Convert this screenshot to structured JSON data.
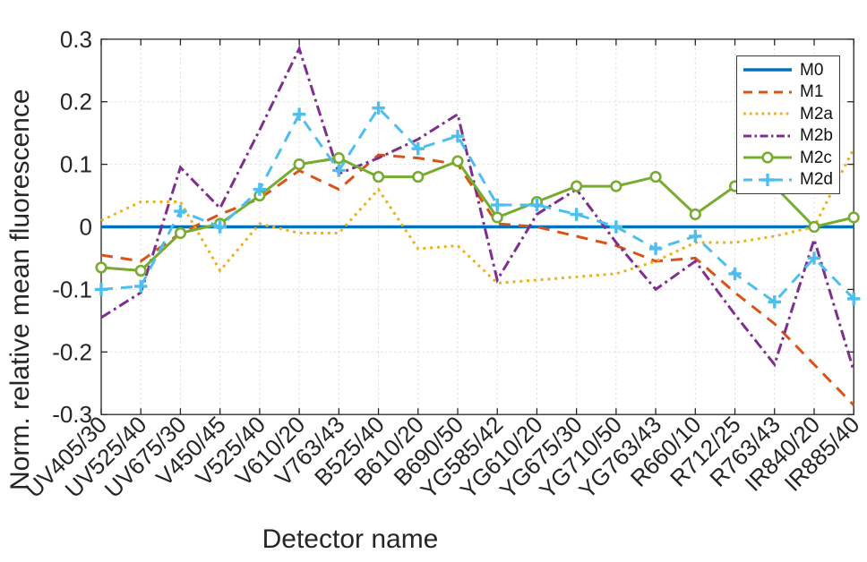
{
  "chart_data": {
    "type": "line",
    "title": "",
    "xlabel": "Detector name",
    "ylabel": "Norm. relative mean fluorescence",
    "ylim": [
      -0.3,
      0.3
    ],
    "ytick_labels": [
      "-0.3",
      "-0.2",
      "-0.1",
      "0",
      "0.1",
      "0.2",
      "0.3"
    ],
    "yticks": [
      -0.3,
      -0.2,
      -0.1,
      0,
      0.1,
      0.2,
      0.3
    ],
    "grid": true,
    "grid_style": "dashed-light-gray",
    "legend_position": "top-right-inside",
    "axis_color": "#262626",
    "categories": [
      "UV405/30",
      "UV525/40",
      "UV675/30",
      "V450/45",
      "V525/40",
      "V610/20",
      "V763/43",
      "B525/40",
      "B610/20",
      "B690/50",
      "YG585/42",
      "YG610/20",
      "YG675/30",
      "YG710/50",
      "YG763/43",
      "R660/10",
      "R712/25",
      "R763/43",
      "IR840/20",
      "IR885/40"
    ],
    "series": [
      {
        "name": "M0",
        "color": "#0072BD",
        "style": "solid",
        "marker": "none",
        "values": [
          0,
          0,
          0,
          0,
          0,
          0,
          0,
          0,
          0,
          0,
          0,
          0,
          0,
          0,
          0,
          0,
          0,
          0,
          0,
          0
        ]
      },
      {
        "name": "M1",
        "color": "#D95319",
        "style": "dashed",
        "marker": "none",
        "values": [
          -0.045,
          -0.055,
          -0.01,
          0.02,
          0.045,
          0.09,
          0.06,
          0.115,
          0.11,
          0.1,
          0.005,
          0,
          -0.015,
          -0.03,
          -0.055,
          -0.05,
          -0.105,
          -0.155,
          -0.22,
          -0.285
        ]
      },
      {
        "name": "M2a",
        "color": "#EDB120",
        "style": "dotted",
        "marker": "none",
        "values": [
          0.01,
          0.04,
          0.04,
          -0.07,
          0.005,
          -0.01,
          -0.01,
          0.06,
          -0.035,
          -0.03,
          -0.09,
          -0.085,
          -0.08,
          -0.075,
          -0.055,
          -0.025,
          -0.025,
          -0.015,
          0,
          0.125
        ]
      },
      {
        "name": "M2b",
        "color": "#7E2F8E",
        "style": "dashdot",
        "marker": "none",
        "values": [
          -0.145,
          -0.105,
          0.095,
          0.03,
          0.155,
          0.285,
          0.085,
          0.11,
          0.14,
          0.18,
          -0.085,
          0.02,
          0.06,
          -0.025,
          -0.1,
          -0.055,
          -0.14,
          -0.22,
          -0.02,
          -0.23
        ]
      },
      {
        "name": "M2c",
        "color": "#77AC30",
        "style": "solid",
        "marker": "circle",
        "values": [
          -0.065,
          -0.07,
          -0.01,
          0.005,
          0.05,
          0.1,
          0.11,
          0.08,
          0.08,
          0.105,
          0.015,
          0.04,
          0.065,
          0.065,
          0.08,
          0.02,
          0.065,
          0.065,
          0,
          0.015
        ]
      },
      {
        "name": "M2d",
        "color": "#4DBEEE",
        "style": "dashed",
        "marker": "plus",
        "values": [
          -0.1,
          -0.095,
          0.025,
          0,
          0.06,
          0.18,
          0.09,
          0.19,
          0.125,
          0.145,
          0.035,
          0.035,
          0.02,
          0,
          -0.035,
          -0.015,
          -0.075,
          -0.12,
          -0.05,
          -0.115
        ]
      }
    ]
  }
}
